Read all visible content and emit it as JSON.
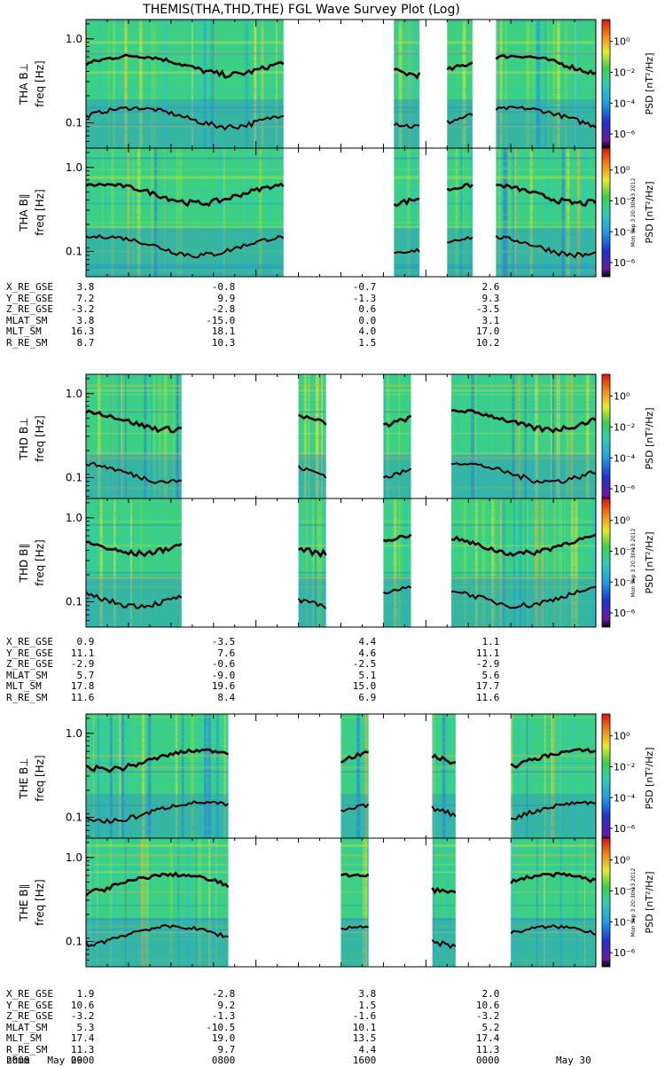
{
  "title": "THEMIS(THA,THD,THE) FGL Wave Survey Plot (Log)",
  "colorbar": {
    "label": "PSD [nT²/Hz]",
    "ticks": [
      "10⁰",
      "10⁻²",
      "10⁻⁴",
      "10⁻⁶"
    ],
    "stamp": "Mon Sep  3 20:30:13 2012"
  },
  "chart_data": [
    {
      "type": "heatmap",
      "panel": "THA B⊥",
      "ylabel": "freq [Hz]",
      "ytick_labels": [
        "1.0",
        "0.1"
      ],
      "ylim": [
        0.05,
        1.7
      ],
      "yscale": "log",
      "data_gaps_hours": [
        [
          9.3,
          14.5
        ],
        [
          15.7,
          17.0
        ],
        [
          18.2,
          19.3
        ]
      ],
      "traces": [
        "black line near 0.5 Hz",
        "black line near 0.12 Hz"
      ]
    },
    {
      "type": "heatmap",
      "panel": "THA B∥",
      "ylabel": "freq [Hz]",
      "ytick_labels": [
        "1.0",
        "0.1"
      ],
      "ylim": [
        0.05,
        1.7
      ],
      "yscale": "log",
      "data_gaps_hours": [
        [
          9.3,
          14.5
        ],
        [
          15.7,
          17.0
        ],
        [
          18.2,
          19.3
        ]
      ]
    },
    {
      "type": "heatmap",
      "panel": "THD B⊥",
      "ylabel": "freq [Hz]",
      "ytick_labels": [
        "1.0",
        "0.1"
      ],
      "ylim": [
        0.05,
        1.7
      ],
      "yscale": "log",
      "data_gaps_hours": [
        [
          4.5,
          10.0
        ],
        [
          11.3,
          14.0
        ],
        [
          15.3,
          17.2
        ]
      ]
    },
    {
      "type": "heatmap",
      "panel": "THD B∥",
      "ylabel": "freq [Hz]",
      "ytick_labels": [
        "1.0",
        "0.1"
      ],
      "ylim": [
        0.05,
        1.7
      ],
      "yscale": "log",
      "data_gaps_hours": [
        [
          4.5,
          10.0
        ],
        [
          11.3,
          14.0
        ],
        [
          15.3,
          17.2
        ]
      ]
    },
    {
      "type": "heatmap",
      "panel": "THE B⊥",
      "ylabel": "freq [Hz]",
      "ytick_labels": [
        "1.0",
        "0.1"
      ],
      "ylim": [
        0.05,
        1.7
      ],
      "yscale": "log",
      "data_gaps_hours": [
        [
          6.7,
          12.0
        ],
        [
          13.3,
          16.3
        ],
        [
          17.4,
          20.0
        ]
      ]
    },
    {
      "type": "heatmap",
      "panel": "THE B∥",
      "ylabel": "freq [Hz]",
      "ytick_labels": [
        "1.0",
        "0.1"
      ],
      "ylim": [
        0.05,
        1.7
      ],
      "yscale": "log",
      "data_gaps_hours": [
        [
          6.7,
          12.0
        ],
        [
          13.3,
          16.3
        ],
        [
          17.4,
          20.0
        ]
      ]
    }
  ],
  "ephemeris": [
    {
      "rows": [
        {
          "label": "X_RE_GSE",
          "values": [
            "3.8",
            "-0.8",
            "-0.7",
            "2.6"
          ]
        },
        {
          "label": "Y_RE_GSE",
          "values": [
            "7.2",
            "9.9",
            "-1.3",
            "9.3"
          ]
        },
        {
          "label": "Z_RE_GSE",
          "values": [
            "-3.2",
            "-2.8",
            "0.6",
            "-3.5"
          ]
        },
        {
          "label": "MLAT_SM",
          "values": [
            "3.8",
            "-15.0",
            "0.0",
            "3.1"
          ]
        },
        {
          "label": "MLT_SM",
          "values": [
            "16.3",
            "18.1",
            "4.0",
            "17.0"
          ]
        },
        {
          "label": "R_RE_SM",
          "values": [
            "8.7",
            "10.3",
            "1.5",
            "10.2"
          ]
        }
      ]
    },
    {
      "rows": [
        {
          "label": "X_RE_GSE",
          "values": [
            "0.9",
            "-3.5",
            "4.4",
            "1.1"
          ]
        },
        {
          "label": "Y_RE_GSE",
          "values": [
            "11.1",
            "7.6",
            "4.6",
            "11.1"
          ]
        },
        {
          "label": "Z_RE_GSE",
          "values": [
            "-2.9",
            "-0.6",
            "-2.5",
            "-2.9"
          ]
        },
        {
          "label": "MLAT_SM",
          "values": [
            "5.7",
            "-9.0",
            "5.1",
            "5.6"
          ]
        },
        {
          "label": "MLT_SM",
          "values": [
            "17.8",
            "19.6",
            "15.0",
            "17.7"
          ]
        },
        {
          "label": "R_RE_SM",
          "values": [
            "11.6",
            "8.4",
            "6.9",
            "11.6"
          ]
        }
      ]
    },
    {
      "rows": [
        {
          "label": "X_RE_GSE",
          "values": [
            "1.9",
            "-2.8",
            "3.8",
            "2.0"
          ]
        },
        {
          "label": "Y_RE_GSE",
          "values": [
            "10.6",
            "9.2",
            "1.5",
            "10.6"
          ]
        },
        {
          "label": "Z_RE_GSE",
          "values": [
            "-3.2",
            "-1.3",
            "-1.6",
            "-3.2"
          ]
        },
        {
          "label": "MLAT_SM",
          "values": [
            "5.3",
            "-10.5",
            "10.1",
            "5.2"
          ]
        },
        {
          "label": "MLT_SM",
          "values": [
            "17.4",
            "19.0",
            "13.5",
            "17.4"
          ]
        },
        {
          "label": "R_RE_SM",
          "values": [
            "11.3",
            "9.7",
            "4.4",
            "11.3"
          ]
        },
        {
          "label": "hhmm",
          "values": [
            "0000",
            "0800",
            "1600",
            "0000"
          ]
        }
      ]
    }
  ],
  "dates": {
    "year": "2008",
    "start": "May 29",
    "end": "May 30"
  }
}
